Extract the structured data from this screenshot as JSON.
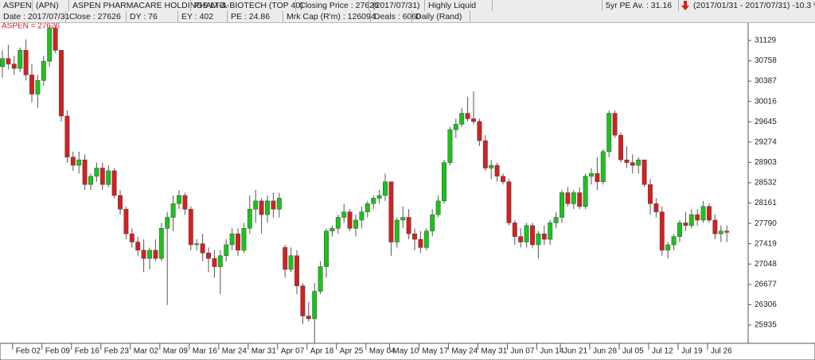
{
  "chart_data": {
    "type": "candlestick",
    "header": [
      "ASPEN",
      "(APN)",
      "ASPEN PHARMACARE HOLDINGS LTD.",
      "PHAM-&-BIOTECH (TOP 40)",
      "Closing Price : 27626",
      "(2017/07/31)",
      "Highly Liquid",
      "5yr PE Av. : 31.16",
      "(2017/01/31 - 2017/07/31) -10.3 %"
    ],
    "info": [
      "Date : 2017/07/31",
      "Close : 27626",
      "DY : 76",
      "EY : 402",
      "PE : 24.86",
      "Mrk Cap (R'm) : 126094",
      "Deals : 6060",
      "Daily (Rand)"
    ],
    "label": "ASPEN = 27626",
    "up_color": "#19c419",
    "down_color": "#d42020",
    "ylim": [
      25601,
      31462
    ],
    "yticks": [
      25935,
      26306,
      26677,
      27048,
      27419,
      27790,
      28161,
      28532,
      28903,
      29274,
      29645,
      30016,
      30387,
      30758,
      31129
    ],
    "categories": [
      null,
      null,
      "Feb 02",
      null,
      null,
      null,
      null,
      "Feb 09",
      null,
      null,
      null,
      null,
      "Feb 16",
      null,
      null,
      null,
      null,
      "Feb 23",
      null,
      null,
      null,
      null,
      "Mar 02",
      null,
      null,
      null,
      null,
      "Mar 09",
      null,
      null,
      null,
      null,
      "Mar 16",
      null,
      null,
      null,
      null,
      "Mar 24",
      null,
      null,
      null,
      null,
      "Mar 31",
      null,
      null,
      null,
      null,
      "Apr 07",
      null,
      null,
      null,
      null,
      "Apr 18",
      null,
      null,
      null,
      null,
      "Apr 25",
      null,
      null,
      null,
      null,
      "May 04",
      null,
      null,
      null,
      "May 10",
      null,
      null,
      null,
      null,
      "May 17",
      null,
      null,
      null,
      null,
      "May 24",
      null,
      null,
      null,
      null,
      "May 31",
      null,
      null,
      null,
      null,
      "Jun 07",
      null,
      null,
      null,
      null,
      "Jun 14",
      null,
      null,
      null,
      "Jun 21",
      null,
      null,
      null,
      null,
      "Jun 28",
      null,
      null,
      null,
      null,
      "Jul 05",
      null,
      null,
      null,
      null,
      "Jul 12",
      null,
      null,
      null,
      null,
      "Jul 19",
      null,
      null,
      null,
      null,
      "Jul 26",
      null,
      null,
      null
    ],
    "open": [
      30650,
      30800,
      30700,
      30620,
      30950,
      30500,
      30150,
      30400,
      30750,
      31350,
      30950,
      29750,
      29000,
      28850,
      28950,
      28500,
      28650,
      28800,
      28500,
      28750,
      28300,
      28050,
      27600,
      27450,
      27300,
      27150,
      27300,
      27150,
      27700,
      27900,
      28150,
      28300,
      28050,
      27400,
      27420,
      27250,
      27150,
      27000,
      27200,
      27400,
      27600,
      27300,
      27700,
      28050,
      28200,
      27950,
      28200,
      28050,
      27350,
      26950,
      27200,
      26650,
      26100,
      26050,
      26550,
      27000,
      27650,
      27700,
      27900,
      28000,
      27700,
      27850,
      28000,
      28150,
      28250,
      28300,
      28550,
      27450,
      27850,
      27900,
      27600,
      27500,
      27350,
      27650,
      27950,
      28200,
      28900,
      29500,
      29600,
      29800,
      29700,
      29650,
      29300,
      28800,
      28850,
      28650,
      28550,
      27800,
      27550,
      27450,
      27750,
      27400,
      27600,
      27500,
      27800,
      27900,
      28350,
      28150,
      28350,
      28100,
      28650,
      28700,
      28550,
      29100,
      29800,
      29400,
      28950,
      28900,
      28850,
      28950,
      28500,
      28150,
      28000,
      27300,
      27400,
      27550,
      27800,
      27750,
      27950,
      27850,
      28100,
      27850,
      27600,
      27650
    ],
    "high": [
      30950,
      31050,
      30850,
      31000,
      31150,
      30700,
      30500,
      30850,
      31400,
      31400,
      30950,
      29850,
      29100,
      29100,
      29050,
      28700,
      28900,
      28900,
      28850,
      28800,
      28400,
      28100,
      27700,
      27550,
      27500,
      27350,
      27500,
      27800,
      28000,
      28300,
      28400,
      28350,
      28100,
      27500,
      27600,
      27350,
      27300,
      27300,
      27500,
      27700,
      27700,
      27800,
      28300,
      28400,
      28250,
      28300,
      28350,
      28350,
      27400,
      27350,
      27300,
      26700,
      26350,
      26700,
      27100,
      27700,
      27750,
      27950,
      28150,
      28050,
      27950,
      28100,
      28200,
      28300,
      28400,
      28700,
      28550,
      27900,
      28100,
      28050,
      27700,
      27650,
      27700,
      28050,
      28300,
      28950,
      29550,
      29700,
      29900,
      30100,
      30200,
      29700,
      29400,
      28950,
      28900,
      28700,
      28600,
      27850,
      27700,
      27800,
      27800,
      27650,
      27750,
      27850,
      28000,
      28400,
      28450,
      28400,
      28450,
      28700,
      28800,
      29000,
      29150,
      29850,
      29850,
      29450,
      29200,
      29050,
      29000,
      28950,
      28600,
      28250,
      28100,
      27450,
      27600,
      27850,
      28000,
      28050,
      28050,
      28200,
      28150,
      27950,
      27750,
      27750
    ],
    "low": [
      30450,
      30600,
      30500,
      30550,
      30400,
      30000,
      29900,
      30300,
      30650,
      30900,
      29650,
      28900,
      28750,
      28700,
      28400,
      28400,
      28550,
      28400,
      28450,
      28250,
      27950,
      27500,
      27350,
      27200,
      26900,
      26950,
      27100,
      27100,
      26300,
      27650,
      28050,
      27950,
      27300,
      27300,
      27100,
      26900,
      26800,
      26500,
      27100,
      27300,
      27200,
      27250,
      27600,
      27800,
      27600,
      27800,
      27900,
      27900,
      26800,
      26900,
      26500,
      25950,
      26000,
      25600,
      26500,
      26800,
      27550,
      27600,
      27800,
      27650,
      27550,
      27700,
      27900,
      28050,
      28150,
      28200,
      27200,
      27350,
      27700,
      27500,
      27300,
      27250,
      27300,
      27550,
      27900,
      28150,
      28850,
      29350,
      29550,
      29650,
      29600,
      29200,
      28750,
      28600,
      28550,
      28500,
      27750,
      27400,
      27350,
      27350,
      27350,
      27150,
      27400,
      27400,
      27700,
      27800,
      28100,
      28050,
      28050,
      28050,
      28500,
      28400,
      28500,
      29000,
      29350,
      28900,
      28800,
      28700,
      28700,
      28450,
      27950,
      27900,
      27200,
      27150,
      27300,
      27450,
      27650,
      27700,
      27750,
      27800,
      27800,
      27500,
      27450,
      27450
    ],
    "close": [
      30800,
      30700,
      30620,
      30950,
      30500,
      30150,
      30400,
      30750,
      31350,
      30950,
      29750,
      29000,
      28850,
      28950,
      28500,
      28650,
      28800,
      28500,
      28750,
      28300,
      28050,
      27600,
      27450,
      27300,
      27150,
      27300,
      27150,
      27700,
      27900,
      28150,
      28300,
      28050,
      27400,
      27420,
      27250,
      27150,
      27000,
      27200,
      27400,
      27600,
      27300,
      27700,
      28050,
      28200,
      27950,
      28200,
      28050,
      28250,
      26950,
      27200,
      26650,
      26100,
      26050,
      26550,
      27000,
      27650,
      27700,
      27900,
      28000,
      27700,
      27850,
      28000,
      28150,
      28250,
      28300,
      28550,
      27450,
      27850,
      27900,
      27600,
      27500,
      27350,
      27650,
      27950,
      28200,
      28900,
      29500,
      29600,
      29800,
      29700,
      29650,
      29300,
      28800,
      28850,
      28650,
      28550,
      27800,
      27550,
      27450,
      27750,
      27400,
      27600,
      27500,
      27800,
      27900,
      28350,
      28150,
      28350,
      28100,
      28650,
      28700,
      28550,
      29100,
      29800,
      29400,
      28950,
      28900,
      28850,
      28950,
      28500,
      28150,
      28000,
      27300,
      27400,
      27550,
      27800,
      27750,
      27950,
      27850,
      28100,
      27850,
      27600,
      27650,
      27626
    ]
  }
}
